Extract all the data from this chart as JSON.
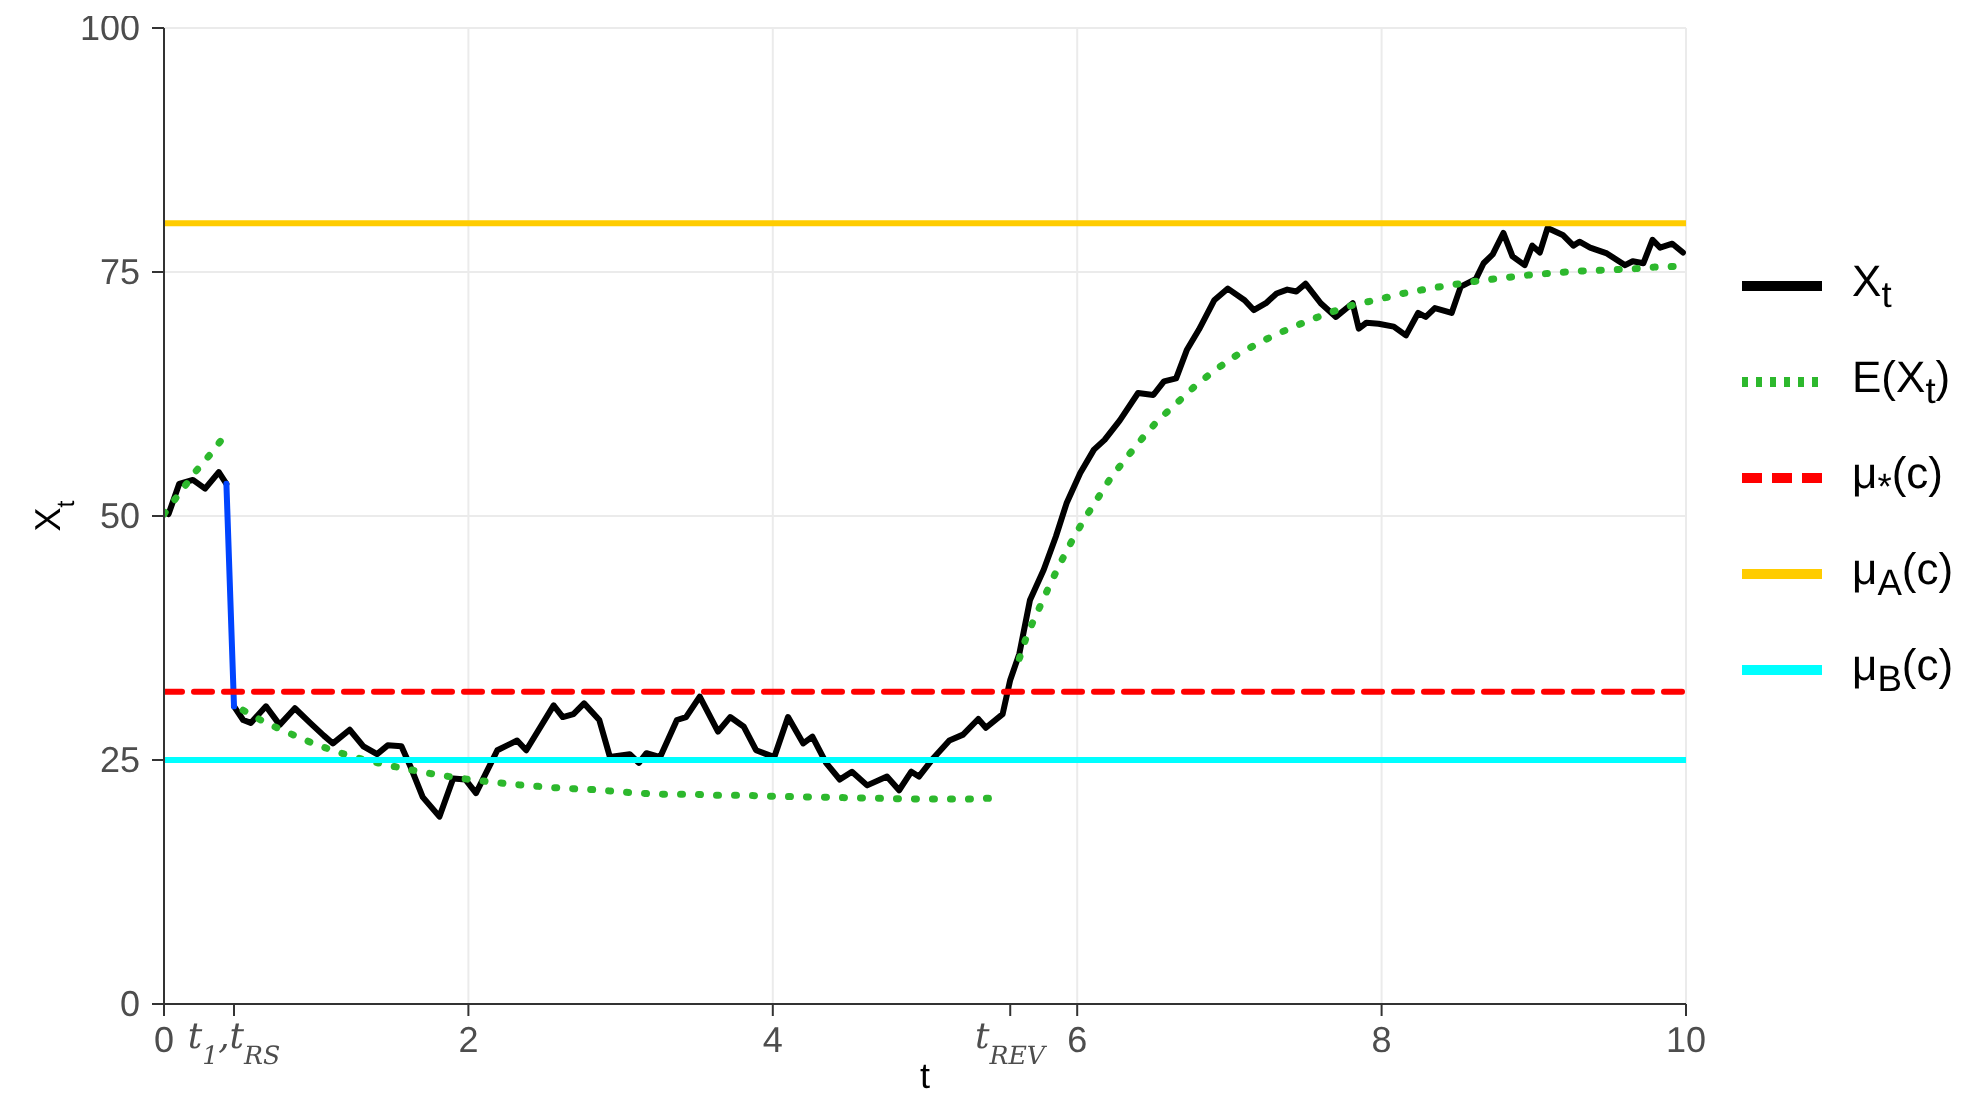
{
  "chart_data": {
    "type": "line",
    "xlabel": "t",
    "ylabel": "X$_{t}$",
    "xlim": [
      0,
      10
    ],
    "ylim": [
      0,
      100
    ],
    "xticks": [
      0,
      {
        "value": 0.46,
        "label": null
      },
      2,
      4,
      {
        "value": 5.56,
        "label": null
      },
      6,
      8,
      10
    ],
    "annotations": [
      "t$_{1}$,t$_{RS}$",
      "t$_{REV}$"
    ],
    "yticks": [
      0,
      25,
      50,
      75,
      100
    ],
    "grid": true,
    "legend": "right",
    "series": [
      {
        "name": "X$_{t}$",
        "color": "#000000",
        "line_style": "solid",
        "x": [
          0.03,
          0.1,
          0.19,
          0.27,
          0.36,
          0.41,
          0.43,
          0.46,
          0.52,
          0.57,
          0.67,
          0.76,
          0.86,
          0.96,
          1.05,
          1.11,
          1.22,
          1.31,
          1.4,
          1.47,
          1.56,
          1.62,
          1.7,
          1.81,
          1.9,
          1.98,
          2.05,
          2.19,
          2.32,
          2.38,
          2.56,
          2.62,
          2.69,
          2.76,
          2.86,
          2.93,
          3.06,
          3.12,
          3.17,
          3.26,
          3.37,
          3.43,
          3.52,
          3.64,
          3.72,
          3.81,
          3.89,
          4.01,
          4.1,
          4.2,
          4.26,
          4.35,
          4.44,
          4.52,
          4.62,
          4.75,
          4.83,
          4.91,
          4.96,
          5.05,
          5.16,
          5.25,
          5.35,
          5.4,
          5.51,
          5.56,
          5.62,
          5.69,
          5.78,
          5.86,
          5.93,
          6.02,
          6.11,
          6.18,
          6.28,
          6.4,
          6.5,
          6.57,
          6.65,
          6.72,
          6.8,
          6.9,
          6.99,
          7.1,
          7.16,
          7.24,
          7.31,
          7.38,
          7.44,
          7.5,
          7.6,
          7.7,
          7.81,
          7.85,
          7.9,
          7.98,
          8.08,
          8.16,
          8.24,
          8.29,
          8.35,
          8.46,
          8.52,
          8.62,
          8.67,
          8.73,
          8.8,
          8.86,
          8.94,
          8.99,
          9.04,
          9.09,
          9.19,
          9.26,
          9.3,
          9.37,
          9.48,
          9.6,
          9.65,
          9.72,
          9.78,
          9.83,
          9.91,
          9.98
        ],
        "values": [
          50.2,
          53.3,
          53.7,
          52.8,
          54.5,
          53.3,
          null,
          30.5,
          29.1,
          28.8,
          30.5,
          28.6,
          30.3,
          28.8,
          27.5,
          26.7,
          28.1,
          26.4,
          25.6,
          26.5,
          26.4,
          24.3,
          21.2,
          19.2,
          23.1,
          23.0,
          21.6,
          26.0,
          27.0,
          26.0,
          30.6,
          29.4,
          29.7,
          30.8,
          29.1,
          25.3,
          25.6,
          24.7,
          25.7,
          25.3,
          29.1,
          29.4,
          31.5,
          27.9,
          29.4,
          28.4,
          26.0,
          25.3,
          29.4,
          26.7,
          27.4,
          24.7,
          23.0,
          23.8,
          22.4,
          23.3,
          21.9,
          23.8,
          23.3,
          25.1,
          27.0,
          27.6,
          29.2,
          28.3,
          29.7,
          33.2,
          35.9,
          41.4,
          44.5,
          47.9,
          51.3,
          54.4,
          56.8,
          57.8,
          59.8,
          62.6,
          62.4,
          63.8,
          64.1,
          67.0,
          69.1,
          72.1,
          73.3,
          72.1,
          71.1,
          71.8,
          72.8,
          73.2,
          73.0,
          73.8,
          71.8,
          70.4,
          71.8,
          69.2,
          69.8,
          69.7,
          69.4,
          68.5,
          70.8,
          70.4,
          71.3,
          70.8,
          73.5,
          74.3,
          75.9,
          76.8,
          79.0,
          76.6,
          75.7,
          77.7,
          77.0,
          79.5,
          78.8,
          77.7,
          78.1,
          77.5,
          76.9,
          75.7,
          76.1,
          75.9,
          78.3,
          77.5,
          77.9,
          77.0
        ]
      },
      {
        "color": "#0044ff",
        "line_style": "solid",
        "x": [
          0.41,
          0.46
        ],
        "values": [
          53.3,
          30.5
        ]
      },
      {
        "name": "E(X$_{t}$)",
        "color": "#2db82d",
        "line_style": "dotted",
        "x": [
          0,
          0.11,
          0.21,
          0.32,
          0.42,
          0.47,
          0.52,
          0.67,
          0.83,
          0.98,
          1.14,
          1.3,
          1.46,
          1.62,
          1.79,
          1.96,
          2.12,
          2.29,
          2.46,
          2.62,
          2.79,
          2.95,
          3.12,
          3.28,
          3.46,
          3.62,
          3.79,
          3.95,
          4.28,
          4.61,
          4.95,
          5.28,
          5.46,
          5.54,
          5.62,
          5.67,
          5.74,
          5.81,
          5.88,
          5.96,
          6.04,
          6.13,
          6.22,
          6.32,
          6.43,
          6.53,
          6.65,
          6.78,
          6.91,
          7.05,
          7.2,
          7.35,
          7.5,
          7.65,
          7.81,
          7.98,
          8.14,
          8.31,
          8.47,
          8.64,
          8.8,
          8.97,
          9.13,
          9.3,
          9.47,
          9.63,
          9.79,
          9.97
        ],
        "values": [
          50.2,
          52.5,
          54.6,
          56.6,
          58.7,
          null,
          30.1,
          28.8,
          27.7,
          26.7,
          25.8,
          25.1,
          24.5,
          24.0,
          23.5,
          23.1,
          22.8,
          22.5,
          22.3,
          22.1,
          22.0,
          21.8,
          21.6,
          21.5,
          21.5,
          21.4,
          21.4,
          21.3,
          21.2,
          21.1,
          21.0,
          21.0,
          21.1,
          null,
          35.4,
          37.8,
          40.2,
          42.6,
          44.9,
          47.3,
          49.5,
          51.7,
          53.9,
          55.9,
          58.0,
          59.8,
          61.5,
          63.4,
          65.0,
          66.5,
          67.8,
          68.9,
          69.9,
          70.8,
          71.6,
          72.2,
          72.8,
          73.3,
          73.7,
          74.1,
          74.4,
          74.7,
          74.9,
          75.1,
          75.2,
          75.3,
          75.5,
          75.6
        ]
      },
      {
        "name": "μ$_{*}$(c)",
        "color": "#ff0000",
        "line_style": "dashed",
        "x": [
          0,
          10
        ],
        "values": [
          32,
          32
        ]
      },
      {
        "name": "μ$_{A}$(c)",
        "color": "#ffcc00",
        "line_style": "solid",
        "x": [
          0,
          10
        ],
        "values": [
          80,
          80
        ]
      },
      {
        "name": "μ$_{B}$(c)",
        "color": "#00ffff",
        "line_style": "solid",
        "x": [
          0,
          10
        ],
        "values": [
          25,
          25
        ]
      }
    ]
  }
}
